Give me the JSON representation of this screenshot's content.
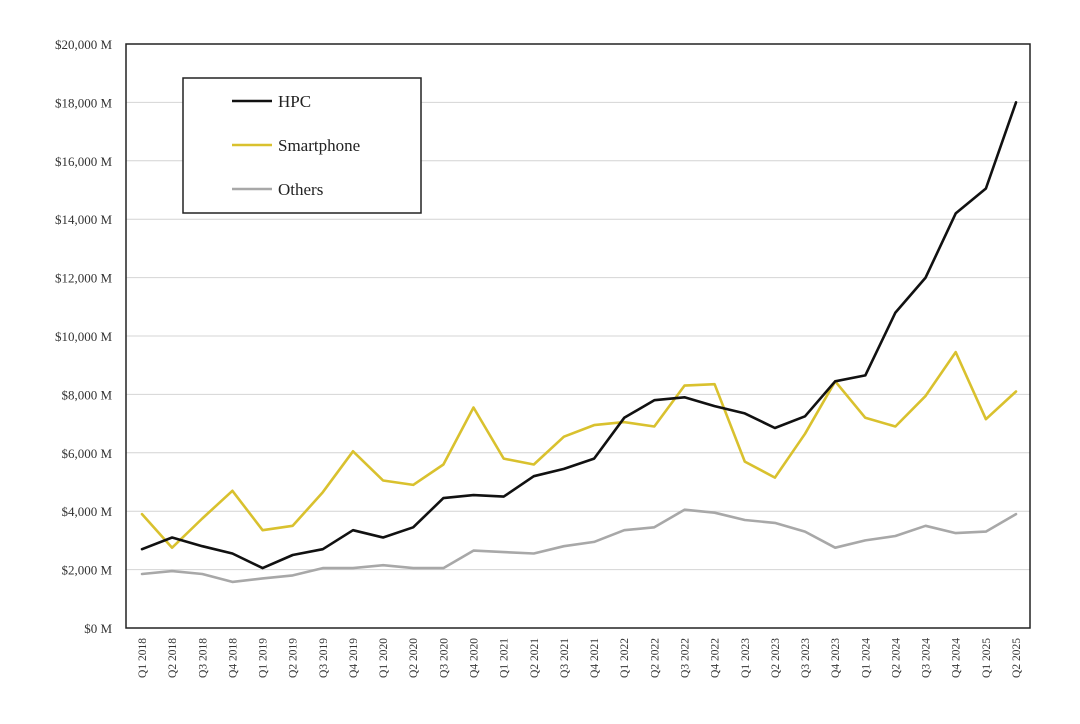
{
  "chart_data": {
    "type": "line",
    "title": "",
    "xlabel": "",
    "ylabel": "",
    "ylim": [
      0,
      20000
    ],
    "grid": true,
    "legend_position": "top-left",
    "yticks": [
      {
        "value": 0,
        "label": "$0 M"
      },
      {
        "value": 2000,
        "label": "$2,000 M"
      },
      {
        "value": 4000,
        "label": "$4,000 M"
      },
      {
        "value": 6000,
        "label": "$6,000 M"
      },
      {
        "value": 8000,
        "label": "$8,000 M"
      },
      {
        "value": 10000,
        "label": "$10,000 M"
      },
      {
        "value": 12000,
        "label": "$12,000 M"
      },
      {
        "value": 14000,
        "label": "$14,000 M"
      },
      {
        "value": 16000,
        "label": "$16,000 M"
      },
      {
        "value": 18000,
        "label": "$18,000 M"
      },
      {
        "value": 20000,
        "label": "$20,000 M"
      }
    ],
    "categories": [
      "Q1 2018",
      "Q2 2018",
      "Q3 2018",
      "Q4 2018",
      "Q1 2019",
      "Q2 2019",
      "Q3 2019",
      "Q4 2019",
      "Q1 2020",
      "Q2 2020",
      "Q3 2020",
      "Q4 2020",
      "Q1 2021",
      "Q2 2021",
      "Q3 2021",
      "Q4 2021",
      "Q1 2022",
      "Q2 2022",
      "Q3 2022",
      "Q4 2022",
      "Q1 2023",
      "Q2 2023",
      "Q3 2023",
      "Q4 2023",
      "Q1 2024",
      "Q2 2024",
      "Q3 2024",
      "Q4 2024",
      "Q1 2025",
      "Q2 2025"
    ],
    "series": [
      {
        "name": "HPC",
        "color": "#111111",
        "values": [
          2700,
          3100,
          2800,
          2550,
          2050,
          2500,
          2700,
          3350,
          3100,
          3450,
          4450,
          4550,
          4500,
          5200,
          5450,
          5800,
          7200,
          7800,
          7900,
          7600,
          7350,
          6850,
          7250,
          8450,
          8650,
          10800,
          12000,
          14200,
          15050,
          18000
        ]
      },
      {
        "name": "Smartphone",
        "color": "#d9c12e",
        "values": [
          3900,
          2750,
          3750,
          4700,
          3350,
          3500,
          4650,
          6050,
          5050,
          4900,
          5600,
          7550,
          5800,
          5600,
          6550,
          6950,
          7050,
          6900,
          8300,
          8350,
          5700,
          5150,
          6650,
          8450,
          7200,
          6900,
          7950,
          9450,
          7150,
          8100
        ]
      },
      {
        "name": "Others",
        "color": "#a8a8a8",
        "values": [
          1850,
          1950,
          1850,
          1580,
          1700,
          1800,
          2050,
          2050,
          2150,
          2050,
          2050,
          2650,
          2600,
          2550,
          2800,
          2950,
          3350,
          3450,
          4050,
          3950,
          3700,
          3600,
          3300,
          2750,
          3000,
          3150,
          3500,
          3250,
          3300,
          3900
        ]
      }
    ]
  }
}
